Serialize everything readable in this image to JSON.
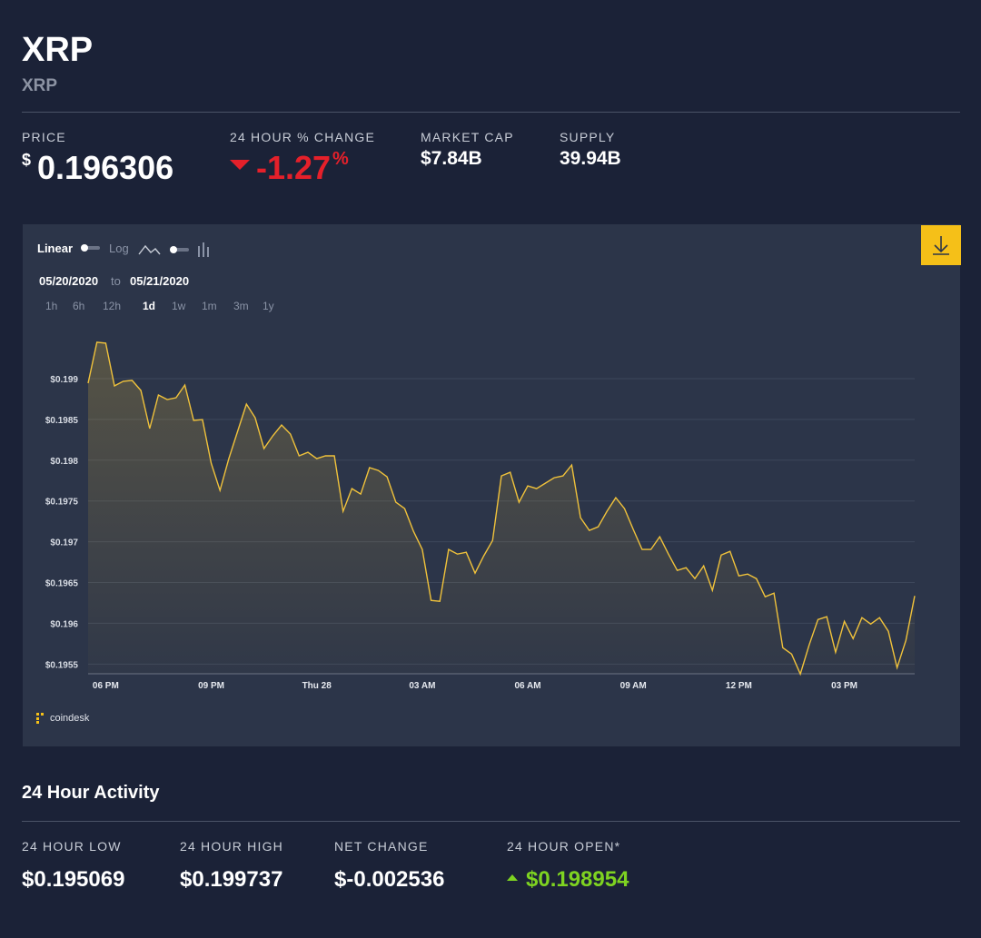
{
  "header": {
    "title": "XRP",
    "subtitle": "XRP"
  },
  "stats": [
    {
      "label": "PRICE",
      "currency": "$",
      "value": "0.196306"
    },
    {
      "label": "24 HOUR % CHANGE",
      "value": "-1.27",
      "unit": "%"
    },
    {
      "label": "MARKET CAP",
      "value": "$7.84B"
    },
    {
      "label": "SUPPLY",
      "value": "39.94B"
    }
  ],
  "controls": {
    "scales": [
      "Linear",
      "Log"
    ],
    "date_from": "05/20/2020",
    "date_separator": "to",
    "date_to": "05/21/2020",
    "ranges": [
      "1h",
      "6h",
      "12h",
      "1d",
      "1w",
      "1m",
      "3m",
      "1y"
    ],
    "active_range": "1d"
  },
  "brand": "coindesk",
  "chart_data": {
    "type": "line",
    "color": "#f0c23b",
    "grid": true,
    "categories": [
      null,
      null,
      "06 PM",
      null,
      null,
      null,
      null,
      null,
      null,
      null,
      null,
      null,
      null,
      null,
      "09 PM",
      null,
      null,
      null,
      null,
      null,
      null,
      null,
      null,
      null,
      null,
      null,
      "Thu 28",
      null,
      null,
      null,
      null,
      null,
      null,
      null,
      null,
      null,
      null,
      null,
      "03 AM",
      null,
      null,
      null,
      null,
      null,
      null,
      null,
      null,
      null,
      null,
      null,
      "06 AM",
      null,
      null,
      null,
      null,
      null,
      null,
      null,
      null,
      null,
      null,
      null,
      "09 AM",
      null,
      null,
      null,
      null,
      null,
      null,
      null,
      null,
      null,
      null,
      null,
      "12 PM",
      null,
      null,
      null,
      null,
      null,
      null,
      null,
      null,
      null,
      null,
      null,
      "03 PM",
      null,
      null,
      null,
      null,
      null,
      null,
      null,
      null
    ],
    "values": [
      0.198944,
      0.199446,
      0.199435,
      0.198911,
      0.198967,
      0.198978,
      0.198855,
      0.198387,
      0.198799,
      0.198744,
      0.198766,
      0.198922,
      0.198487,
      0.198498,
      0.197963,
      0.197629,
      0.198019,
      0.198354,
      0.198688,
      0.198521,
      0.198142,
      0.198298,
      0.198432,
      0.19832,
      0.198053,
      0.198097,
      0.198019,
      0.198053,
      0.198053,
      0.197373,
      0.197651,
      0.197585,
      0.197908,
      0.197874,
      0.197796,
      0.197484,
      0.197406,
      0.197128,
      0.196905,
      0.196281,
      0.19627,
      0.196905,
      0.196849,
      0.196871,
      0.196615,
      0.196827,
      0.197016,
      0.197807,
      0.197852,
      0.197484,
      0.197685,
      0.197651,
      0.197718,
      0.197785,
      0.197807,
      0.197941,
      0.197295,
      0.197139,
      0.197183,
      0.197373,
      0.19754,
      0.197406,
      0.19715,
      0.196905,
      0.196905,
      0.197061,
      0.196849,
      0.196648,
      0.196682,
      0.196548,
      0.196704,
      0.196403,
      0.196838,
      0.196882,
      0.196581,
      0.196604,
      0.196548,
      0.196325,
      0.19637,
      0.195701,
      0.195623,
      0.195378,
      0.195734,
      0.196046,
      0.19608,
      0.195645,
      0.196024,
      0.195812,
      0.196069,
      0.195991,
      0.196069,
      0.195902,
      0.195456,
      0.19579,
      0.196336
    ],
    "ylim": [
      0.19537,
      0.19969
    ],
    "yticks": [
      {
        "value": 0.199,
        "label": "$0.199"
      },
      {
        "value": 0.1985,
        "label": "$0.1985"
      },
      {
        "value": 0.198,
        "label": "$0.198"
      },
      {
        "value": 0.1975,
        "label": "$0.1975"
      },
      {
        "value": 0.197,
        "label": "$0.197"
      },
      {
        "value": 0.1965,
        "label": "$0.1965"
      },
      {
        "value": 0.196,
        "label": "$0.196"
      },
      {
        "value": 0.1955,
        "label": "$0.1955"
      }
    ]
  },
  "activity": {
    "title": "24 Hour Activity",
    "stats": [
      {
        "label": "24 HOUR LOW",
        "value": "$0.195069"
      },
      {
        "label": "24 HOUR HIGH",
        "value": "$0.199737"
      },
      {
        "label": "NET CHANGE",
        "value": "$-0.002536"
      },
      {
        "label": "24 HOUR OPEN*",
        "value": "$0.198954"
      }
    ]
  }
}
